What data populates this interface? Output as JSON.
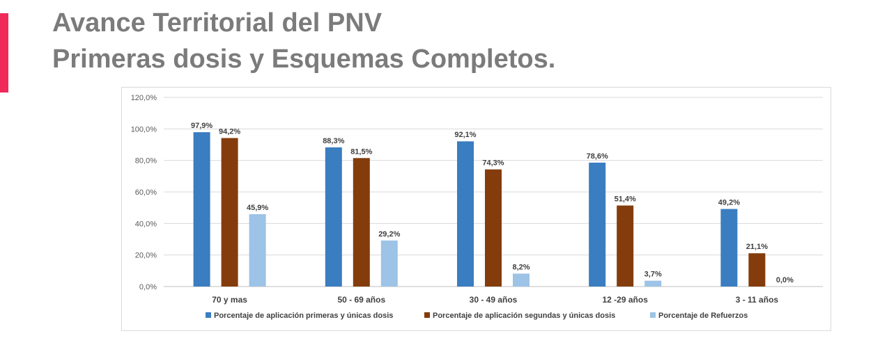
{
  "slide": {
    "title_line1": "Avance Territorial del PNV",
    "title_line2": "Primeras dosis y Esquemas Completos.",
    "accent_color": "#f0295a"
  },
  "chart_data": {
    "type": "bar",
    "categories": [
      "70  y mas",
      "50 - 69 años",
      "30 - 49 años",
      "12 -29 años",
      "3 - 11 años"
    ],
    "series": [
      {
        "name": "Porcentaje de aplicación primeras y únicas dosis",
        "values": [
          97.9,
          88.3,
          92.1,
          78.6,
          49.2
        ],
        "labels": [
          "97,9%",
          "88,3%",
          "92,1%",
          "78,6%",
          "49,2%"
        ],
        "color": "#3a7dc0"
      },
      {
        "name": "Porcentaje de aplicación segundas y únicas dosis",
        "values": [
          94.2,
          81.5,
          74.3,
          51.4,
          21.1
        ],
        "labels": [
          "94,2%",
          "81,5%",
          "74,3%",
          "51,4%",
          "21,1%"
        ],
        "color": "#843c0c"
      },
      {
        "name": "Porcentaje de Refuerzos",
        "values": [
          45.9,
          29.2,
          8.2,
          3.7,
          0.0
        ],
        "labels": [
          "45,9%",
          "29,2%",
          "8,2%",
          "3,7%",
          "0,0%"
        ],
        "color": "#9dc3e6"
      }
    ],
    "y_ticks": [
      0,
      20,
      40,
      60,
      80,
      100,
      120
    ],
    "y_tick_labels": [
      "0,0%",
      "20,0%",
      "40,0%",
      "60,0%",
      "80,0%",
      "100,0%",
      "120,0%"
    ],
    "ylim": [
      0,
      120
    ],
    "grid": true,
    "legend_position": "bottom"
  }
}
